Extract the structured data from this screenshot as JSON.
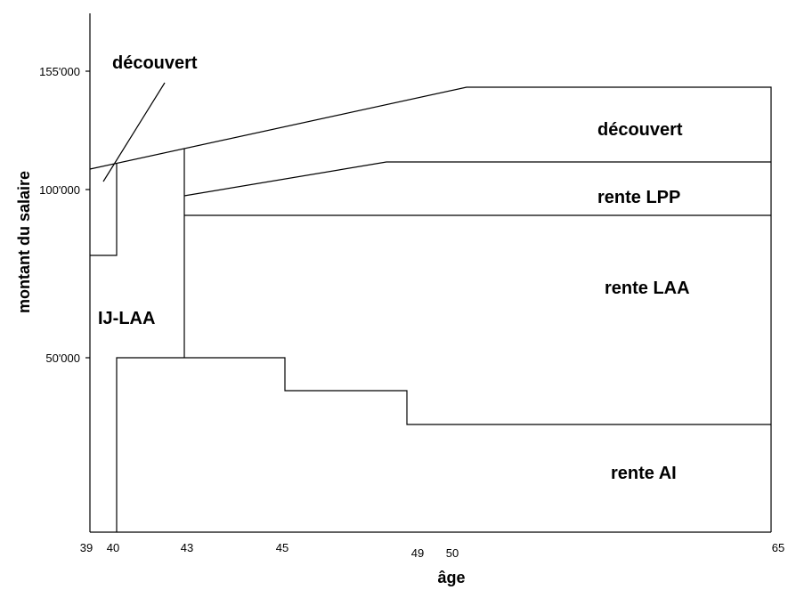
{
  "y_axis": {
    "title": "montant du salaire",
    "ticks": [
      "155'000",
      "100'000",
      "50'000"
    ]
  },
  "x_axis": {
    "title": "âge",
    "ticks": [
      "39",
      "40",
      "43",
      "45",
      "49",
      "50",
      "65"
    ]
  },
  "regions": {
    "decouvert_top": "découvert",
    "decouvert_right": "découvert",
    "rente_lpp": "rente LPP",
    "ij_laa": "IJ-LAA",
    "rente_laa": "rente LAA",
    "rente_ai": "rente AI"
  }
}
